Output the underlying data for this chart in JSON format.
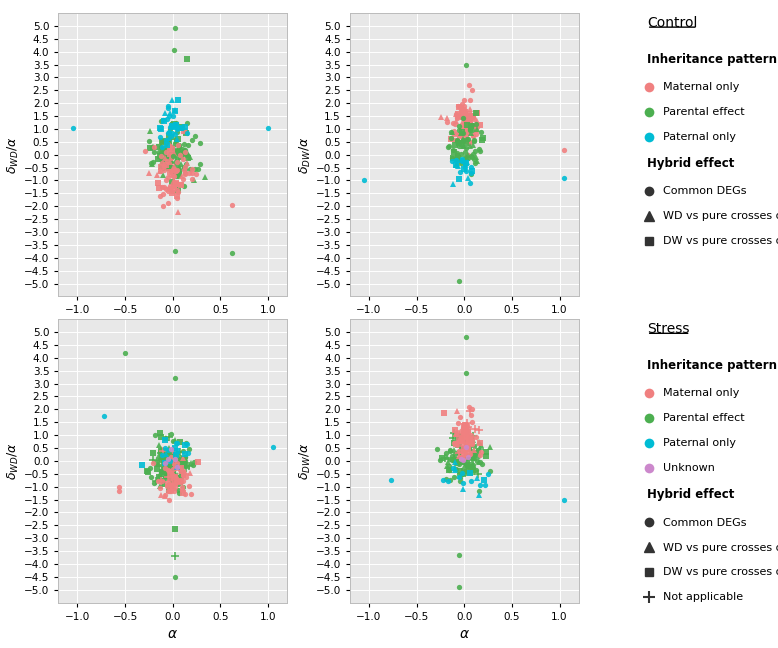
{
  "background_color": "#e8e8e8",
  "grid_color": "white",
  "xlim": [
    -1.2,
    1.2
  ],
  "ylim": [
    -5.5,
    5.5
  ],
  "yticks": [
    -5.0,
    -4.5,
    -4.0,
    -3.5,
    -3.0,
    -2.5,
    -2.0,
    -1.5,
    -1.0,
    -0.5,
    0.0,
    0.5,
    1.0,
    1.5,
    2.0,
    2.5,
    3.0,
    3.5,
    4.0,
    4.5,
    5.0
  ],
  "xticks": [
    -1.0,
    -0.5,
    0.0,
    0.5,
    1.0
  ],
  "colors": {
    "maternal": "#F08080",
    "parental": "#4CAF50",
    "paternal": "#00BCD4",
    "unknown": "#CC88CC",
    "common_degs": "#222222"
  },
  "control_legend": {
    "title": "Control",
    "title_inherit": "Inheritance pattern",
    "items_inherit": [
      [
        "Maternal only",
        "#F08080",
        "o"
      ],
      [
        "Parental effect",
        "#4CAF50",
        "o"
      ],
      [
        "Paternal only",
        "#00BCD4",
        "o"
      ]
    ],
    "title_hybrid": "Hybrid effect",
    "items_hybrid": [
      [
        "Common DEGs",
        "#222222",
        "o"
      ],
      [
        "WD vs pure crosses only",
        "#222222",
        "^"
      ],
      [
        "DW vs pure crosses only",
        "#222222",
        "s"
      ]
    ]
  },
  "stress_legend": {
    "title": "Stress",
    "title_inherit": "Inheritance pattern",
    "items_inherit": [
      [
        "Maternal only",
        "#F08080",
        "o"
      ],
      [
        "Parental effect",
        "#4CAF50",
        "o"
      ],
      [
        "Paternal only",
        "#00BCD4",
        "o"
      ],
      [
        "Unknown",
        "#CC88CC",
        "o"
      ]
    ],
    "title_hybrid": "Hybrid effect",
    "items_hybrid": [
      [
        "Common DEGs",
        "#222222",
        "o"
      ],
      [
        "WD vs pure crosses only",
        "#222222",
        "^"
      ],
      [
        "DW vs pure crosses only",
        "#222222",
        "s"
      ],
      [
        "Not applicable",
        "#222222",
        "P"
      ]
    ]
  },
  "ylabel_wd": "δ_WD/α",
  "ylabel_dw": "δ_DW/α",
  "xlabel": "α"
}
